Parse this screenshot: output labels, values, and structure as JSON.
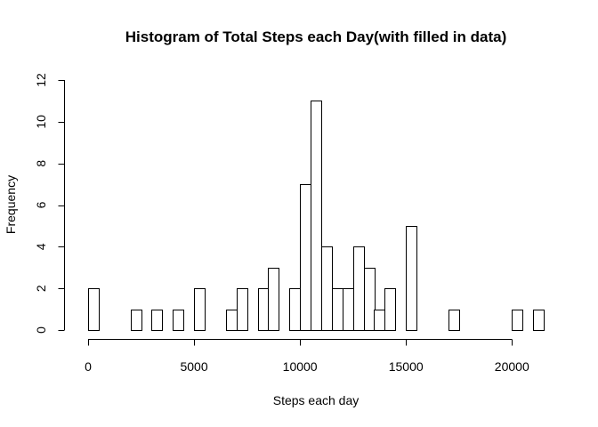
{
  "chart_data": {
    "type": "bar",
    "title": "Histogram of Total Steps each Day(with filled in data)",
    "xlabel": "Steps each day",
    "ylabel": "Frequency",
    "bin_width": 500,
    "x_first_bin_start": 0,
    "values": [
      2,
      0,
      0,
      0,
      1,
      0,
      1,
      0,
      1,
      0,
      2,
      0,
      0,
      1,
      2,
      0,
      2,
      3,
      0,
      2,
      7,
      11,
      4,
      2,
      2,
      4,
      3,
      1,
      2,
      0,
      5,
      0,
      0,
      0,
      1,
      0,
      0,
      0,
      0,
      0,
      1,
      0,
      1
    ],
    "xlim": [
      0,
      21500
    ],
    "ylim": [
      0,
      12
    ],
    "x_ticks": [
      0,
      5000,
      10000,
      15000,
      20000
    ],
    "y_ticks": [
      0,
      2,
      4,
      6,
      8,
      10,
      12
    ],
    "grid": false
  }
}
